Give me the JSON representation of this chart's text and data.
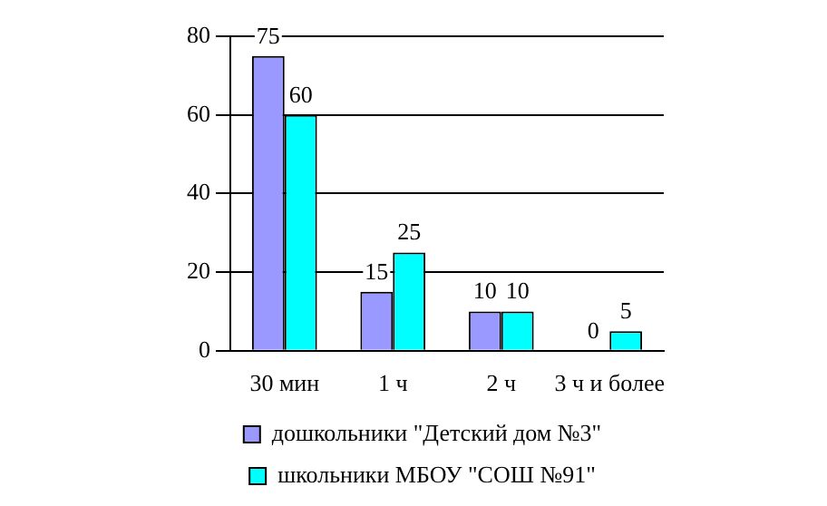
{
  "chart_data": {
    "type": "bar",
    "categories": [
      "30 мин",
      "1 ч",
      "2 ч",
      "3 ч и более"
    ],
    "series": [
      {
        "name": "дошкольники \"Детский дом №3\"",
        "color": "#9999ff",
        "values": [
          75,
          15,
          10,
          0
        ]
      },
      {
        "name": "школьники МБОУ \"СОШ №91\"",
        "color": "#00ffff",
        "values": [
          60,
          25,
          10,
          5
        ]
      }
    ],
    "ylim": [
      0,
      80
    ],
    "yticks": [
      0,
      20,
      40,
      60,
      80
    ],
    "grid": "y",
    "legend": "bottom",
    "data_labels": true
  }
}
